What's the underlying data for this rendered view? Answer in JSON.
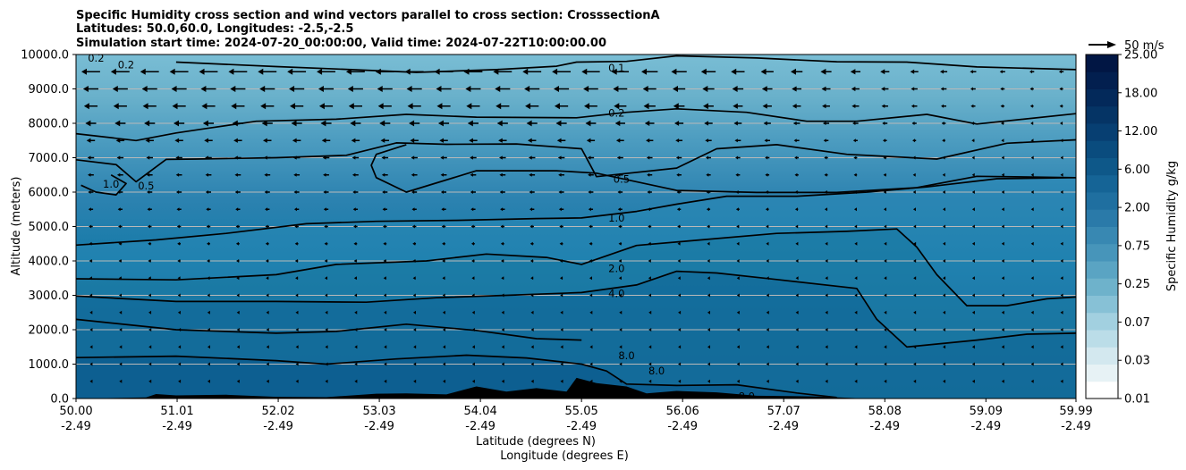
{
  "chart_data": {
    "type": "cross-section",
    "title": [
      "Specific Humidity cross section and wind vectors parallel to cross section: CrosssectionA",
      "Latitudes: 50.0,60.0, Longitudes: -2.5,-2.5",
      "Simulation start time: 2024-07-20_00:00:00, Valid time: 2024-07-22T10:00:00.00"
    ],
    "xlabel": "Latitude (degrees N)",
    "xlabel2": "Longitude (degrees E)",
    "ylabel": "Altitude (meters)",
    "xlim": [
      50.0,
      59.99
    ],
    "ylim": [
      0,
      10000
    ],
    "x_ticks": [
      {
        "value": 50.0,
        "lat": "50.00",
        "lon": "-2.49"
      },
      {
        "value": 51.01,
        "lat": "51.01",
        "lon": "-2.49"
      },
      {
        "value": 52.02,
        "lat": "52.02",
        "lon": "-2.49"
      },
      {
        "value": 53.03,
        "lat": "53.03",
        "lon": "-2.49"
      },
      {
        "value": 54.04,
        "lat": "54.04",
        "lon": "-2.49"
      },
      {
        "value": 55.05,
        "lat": "55.05",
        "lon": "-2.49"
      },
      {
        "value": 56.06,
        "lat": "56.06",
        "lon": "-2.49"
      },
      {
        "value": 57.07,
        "lat": "57.07",
        "lon": "-2.49"
      },
      {
        "value": 58.08,
        "lat": "58.08",
        "lon": "-2.49"
      },
      {
        "value": 59.09,
        "lat": "59.09",
        "lon": "-2.49"
      },
      {
        "value": 59.99,
        "lat": "59.99",
        "lon": "-2.49"
      }
    ],
    "y_ticks": [
      {
        "value": 0,
        "label": "0.0"
      },
      {
        "value": 1000,
        "label": "1000.0"
      },
      {
        "value": 2000,
        "label": "2000.0"
      },
      {
        "value": 3000,
        "label": "3000.0"
      },
      {
        "value": 4000,
        "label": "4000.0"
      },
      {
        "value": 5000,
        "label": "5000.0"
      },
      {
        "value": 6000,
        "label": "6000.0"
      },
      {
        "value": 7000,
        "label": "7000.0"
      },
      {
        "value": 8000,
        "label": "8000.0"
      },
      {
        "value": 9000,
        "label": "9000.0"
      },
      {
        "value": 10000,
        "label": "10000.0"
      }
    ],
    "horizontal_grid": true,
    "colorbar": {
      "label": "Specific Humidity g/kg",
      "tick_labels": [
        "0.01",
        "0.03",
        "0.07",
        "0.25",
        "0.75",
        "2.00",
        "6.00",
        "12.00",
        "18.00",
        "25.00"
      ],
      "colors": [
        "#ffffff",
        "#e7f2f5",
        "#d3e8ef",
        "#bbdde8",
        "#a2d0e0",
        "#87c1d6",
        "#6eb2cb",
        "#5aa4c3",
        "#4795ba",
        "#3888b2",
        "#2a7aa9",
        "#1f6fa0",
        "#156496",
        "#0e5889",
        "#0a4c7e",
        "#073f72",
        "#053465",
        "#03295a",
        "#021f4f",
        "#011644"
      ]
    },
    "quiver_key": {
      "label": "50 m/s",
      "value": 50
    },
    "contour_levels": [
      "0.1",
      "0.2",
      "0.5",
      "1.0",
      "2.0",
      "4.0",
      "8.0"
    ],
    "contours": [
      {
        "level": "0.1",
        "points": [
          [
            51.0,
            9780
          ],
          [
            52.0,
            9650
          ],
          [
            52.6,
            9580
          ],
          [
            53.4,
            9480
          ],
          [
            54.2,
            9560
          ],
          [
            54.8,
            9660
          ],
          [
            55.0,
            9780
          ],
          [
            55.5,
            9800
          ],
          [
            56.0,
            9960
          ],
          [
            56.8,
            9900
          ],
          [
            57.6,
            9790
          ],
          [
            58.3,
            9780
          ],
          [
            59.0,
            9640
          ],
          [
            59.99,
            9560
          ]
        ],
        "label_at": [
          55.4,
          9610
        ]
      },
      {
        "level": "0.2",
        "points": [
          [
            50.0,
            7700
          ],
          [
            50.6,
            7500
          ],
          [
            51.0,
            7720
          ],
          [
            51.3,
            7850
          ],
          [
            51.8,
            8060
          ],
          [
            52.6,
            8120
          ],
          [
            53.3,
            8260
          ],
          [
            54.0,
            8180
          ],
          [
            55.0,
            8160
          ],
          [
            55.5,
            8320
          ],
          [
            56.0,
            8420
          ],
          [
            56.7,
            8320
          ],
          [
            57.3,
            8060
          ],
          [
            57.8,
            8060
          ],
          [
            58.5,
            8260
          ],
          [
            59.0,
            7980
          ],
          [
            59.99,
            8280
          ]
        ],
        "label_at": [
          55.4,
          8300
        ]
      },
      {
        "level": "0.5",
        "points": [
          [
            50.0,
            6940
          ],
          [
            50.4,
            6800
          ],
          [
            50.6,
            6300
          ],
          [
            50.9,
            6950
          ],
          [
            51.2,
            6960
          ],
          [
            52.0,
            7000
          ],
          [
            52.7,
            7070
          ],
          [
            53.2,
            7430
          ],
          [
            53.7,
            7390
          ],
          [
            54.4,
            7400
          ],
          [
            55.05,
            7260
          ],
          [
            55.2,
            6450
          ],
          [
            56.0,
            6700
          ],
          [
            56.4,
            7260
          ],
          [
            57.0,
            7380
          ],
          [
            57.7,
            7100
          ],
          [
            58.6,
            6960
          ],
          [
            59.3,
            7420
          ],
          [
            59.99,
            7520
          ]
        ],
        "label_at": [
          55.45,
          6380
        ]
      },
      {
        "level": "0.5b",
        "points": [
          [
            53.3,
            7380
          ],
          [
            53.0,
            7100
          ],
          [
            52.95,
            6780
          ],
          [
            53.0,
            6420
          ],
          [
            53.3,
            6000
          ],
          [
            54.0,
            6620
          ],
          [
            54.8,
            6620
          ],
          [
            55.2,
            6550
          ],
          [
            56.0,
            6050
          ],
          [
            56.8,
            5990
          ],
          [
            57.6,
            5990
          ],
          [
            58.4,
            6130
          ],
          [
            59.0,
            6460
          ],
          [
            59.99,
            6420
          ]
        ]
      },
      {
        "level": "1.0",
        "points": [
          [
            50.0,
            4460
          ],
          [
            50.8,
            4610
          ],
          [
            51.5,
            4800
          ],
          [
            52.3,
            5080
          ],
          [
            53.0,
            5150
          ],
          [
            53.8,
            5180
          ],
          [
            54.6,
            5230
          ],
          [
            55.05,
            5250
          ],
          [
            55.6,
            5440
          ],
          [
            56.0,
            5650
          ],
          [
            56.5,
            5880
          ],
          [
            57.2,
            5880
          ],
          [
            57.9,
            6000
          ],
          [
            58.5,
            6150
          ],
          [
            59.2,
            6390
          ],
          [
            59.99,
            6420
          ]
        ],
        "label_at": [
          55.4,
          5250
        ]
      },
      {
        "level": "1.0b",
        "points": [
          [
            50.35,
            6500
          ],
          [
            50.5,
            6250
          ],
          [
            50.4,
            5920
          ],
          [
            50.2,
            6000
          ],
          [
            50.05,
            6200
          ]
        ],
        "label_at": [
          50.35,
          6230
        ]
      },
      {
        "level": "2.0",
        "points": [
          [
            50.0,
            3480
          ],
          [
            51.0,
            3450
          ],
          [
            52.0,
            3600
          ],
          [
            52.6,
            3900
          ],
          [
            53.5,
            4000
          ],
          [
            54.1,
            4200
          ],
          [
            54.7,
            4100
          ],
          [
            55.05,
            3900
          ],
          [
            55.6,
            4450
          ],
          [
            56.2,
            4600
          ],
          [
            57.0,
            4800
          ],
          [
            57.7,
            4860
          ],
          [
            58.2,
            4930
          ],
          [
            58.4,
            4400
          ],
          [
            58.6,
            3600
          ],
          [
            58.9,
            2700
          ],
          [
            59.3,
            2700
          ],
          [
            59.7,
            2900
          ],
          [
            59.99,
            2950
          ]
        ],
        "label_at": [
          55.4,
          3780
        ]
      },
      {
        "level": "4.0",
        "points": [
          [
            50.0,
            2980
          ],
          [
            51.0,
            2820
          ],
          [
            52.0,
            2820
          ],
          [
            52.9,
            2800
          ],
          [
            53.6,
            2930
          ],
          [
            54.3,
            3000
          ],
          [
            55.05,
            3080
          ],
          [
            55.6,
            3300
          ],
          [
            56.0,
            3700
          ],
          [
            56.4,
            3650
          ],
          [
            57.0,
            3460
          ],
          [
            57.8,
            3200
          ],
          [
            58.0,
            2300
          ],
          [
            58.3,
            1500
          ],
          [
            59.0,
            1700
          ],
          [
            59.5,
            1870
          ],
          [
            59.99,
            1900
          ]
        ],
        "label_at": [
          55.4,
          3050
        ]
      },
      {
        "level": "8.0",
        "points": [
          [
            50.0,
            2300
          ],
          [
            51.0,
            2000
          ],
          [
            52.0,
            1900
          ],
          [
            52.6,
            1950
          ],
          [
            53.3,
            2160
          ],
          [
            54.0,
            1980
          ],
          [
            54.6,
            1740
          ],
          [
            55.05,
            1700
          ]
        ]
      },
      {
        "level": "8.0b",
        "points": [
          [
            50.0,
            1190
          ],
          [
            51.0,
            1230
          ],
          [
            52.0,
            1100
          ],
          [
            52.5,
            1000
          ],
          [
            53.2,
            1150
          ],
          [
            53.9,
            1260
          ],
          [
            54.5,
            1180
          ],
          [
            55.05,
            1000
          ],
          [
            55.3,
            800
          ],
          [
            55.5,
            420
          ],
          [
            56.0,
            380
          ],
          [
            56.6,
            400
          ],
          [
            57.2,
            160
          ],
          [
            57.6,
            30
          ]
        ],
        "label_at": [
          55.05,
          1250
        ]
      }
    ],
    "contour_label_texts": [
      {
        "text": "0.1",
        "at": [
          55.4,
          9610
        ]
      },
      {
        "text": "0.2",
        "at": [
          55.4,
          8300
        ]
      },
      {
        "text": "0.5",
        "at": [
          55.45,
          6380
        ]
      },
      {
        "text": "1.0",
        "at": [
          55.4,
          5250
        ]
      },
      {
        "text": "2.0",
        "at": [
          55.4,
          3780
        ]
      },
      {
        "text": "4.0",
        "at": [
          55.4,
          3050
        ]
      },
      {
        "text": "8.0",
        "at": [
          55.5,
          1250
        ]
      },
      {
        "text": "8.0",
        "at": [
          55.8,
          800
        ]
      },
      {
        "text": "8.0",
        "at": [
          56.7,
          60
        ]
      },
      {
        "text": "1.0",
        "at": [
          50.35,
          6230
        ]
      },
      {
        "text": "0.5",
        "at": [
          50.7,
          6180
        ]
      },
      {
        "text": "0.2",
        "at": [
          50.5,
          9700
        ]
      },
      {
        "text": "0.2",
        "at": [
          50.2,
          9900
        ]
      }
    ],
    "terrain": [
      [
        50.0,
        0
      ],
      [
        50.7,
        30
      ],
      [
        50.8,
        130
      ],
      [
        51.0,
        90
      ],
      [
        51.5,
        110
      ],
      [
        52.0,
        50
      ],
      [
        52.5,
        40
      ],
      [
        53.0,
        140
      ],
      [
        53.3,
        150
      ],
      [
        53.7,
        120
      ],
      [
        54.0,
        350
      ],
      [
        54.3,
        200
      ],
      [
        54.6,
        300
      ],
      [
        54.9,
        200
      ],
      [
        55.0,
        600
      ],
      [
        55.2,
        450
      ],
      [
        55.5,
        350
      ],
      [
        55.7,
        150
      ],
      [
        56.0,
        220
      ],
      [
        56.4,
        180
      ],
      [
        56.8,
        80
      ],
      [
        57.4,
        60
      ],
      [
        57.9,
        0
      ],
      [
        59.99,
        0
      ]
    ],
    "wind_vectors": [
      {
        "row_altitudes": [
          9500,
          9000,
          8500,
          8000,
          7500,
          7000,
          6500,
          6000,
          5500,
          5000,
          4500,
          4000,
          3500,
          3000,
          2500,
          2000,
          1500,
          1000,
          500
        ],
        "strength_by_row": [
          0.55,
          0.45,
          0.4,
          0.32,
          0.25,
          0.2,
          0.18,
          0.16,
          0.14,
          0.12,
          0.1,
          0.09,
          0.08,
          0.07,
          0.06,
          0.05,
          0.04,
          0.03,
          0.02
        ]
      }
    ]
  }
}
